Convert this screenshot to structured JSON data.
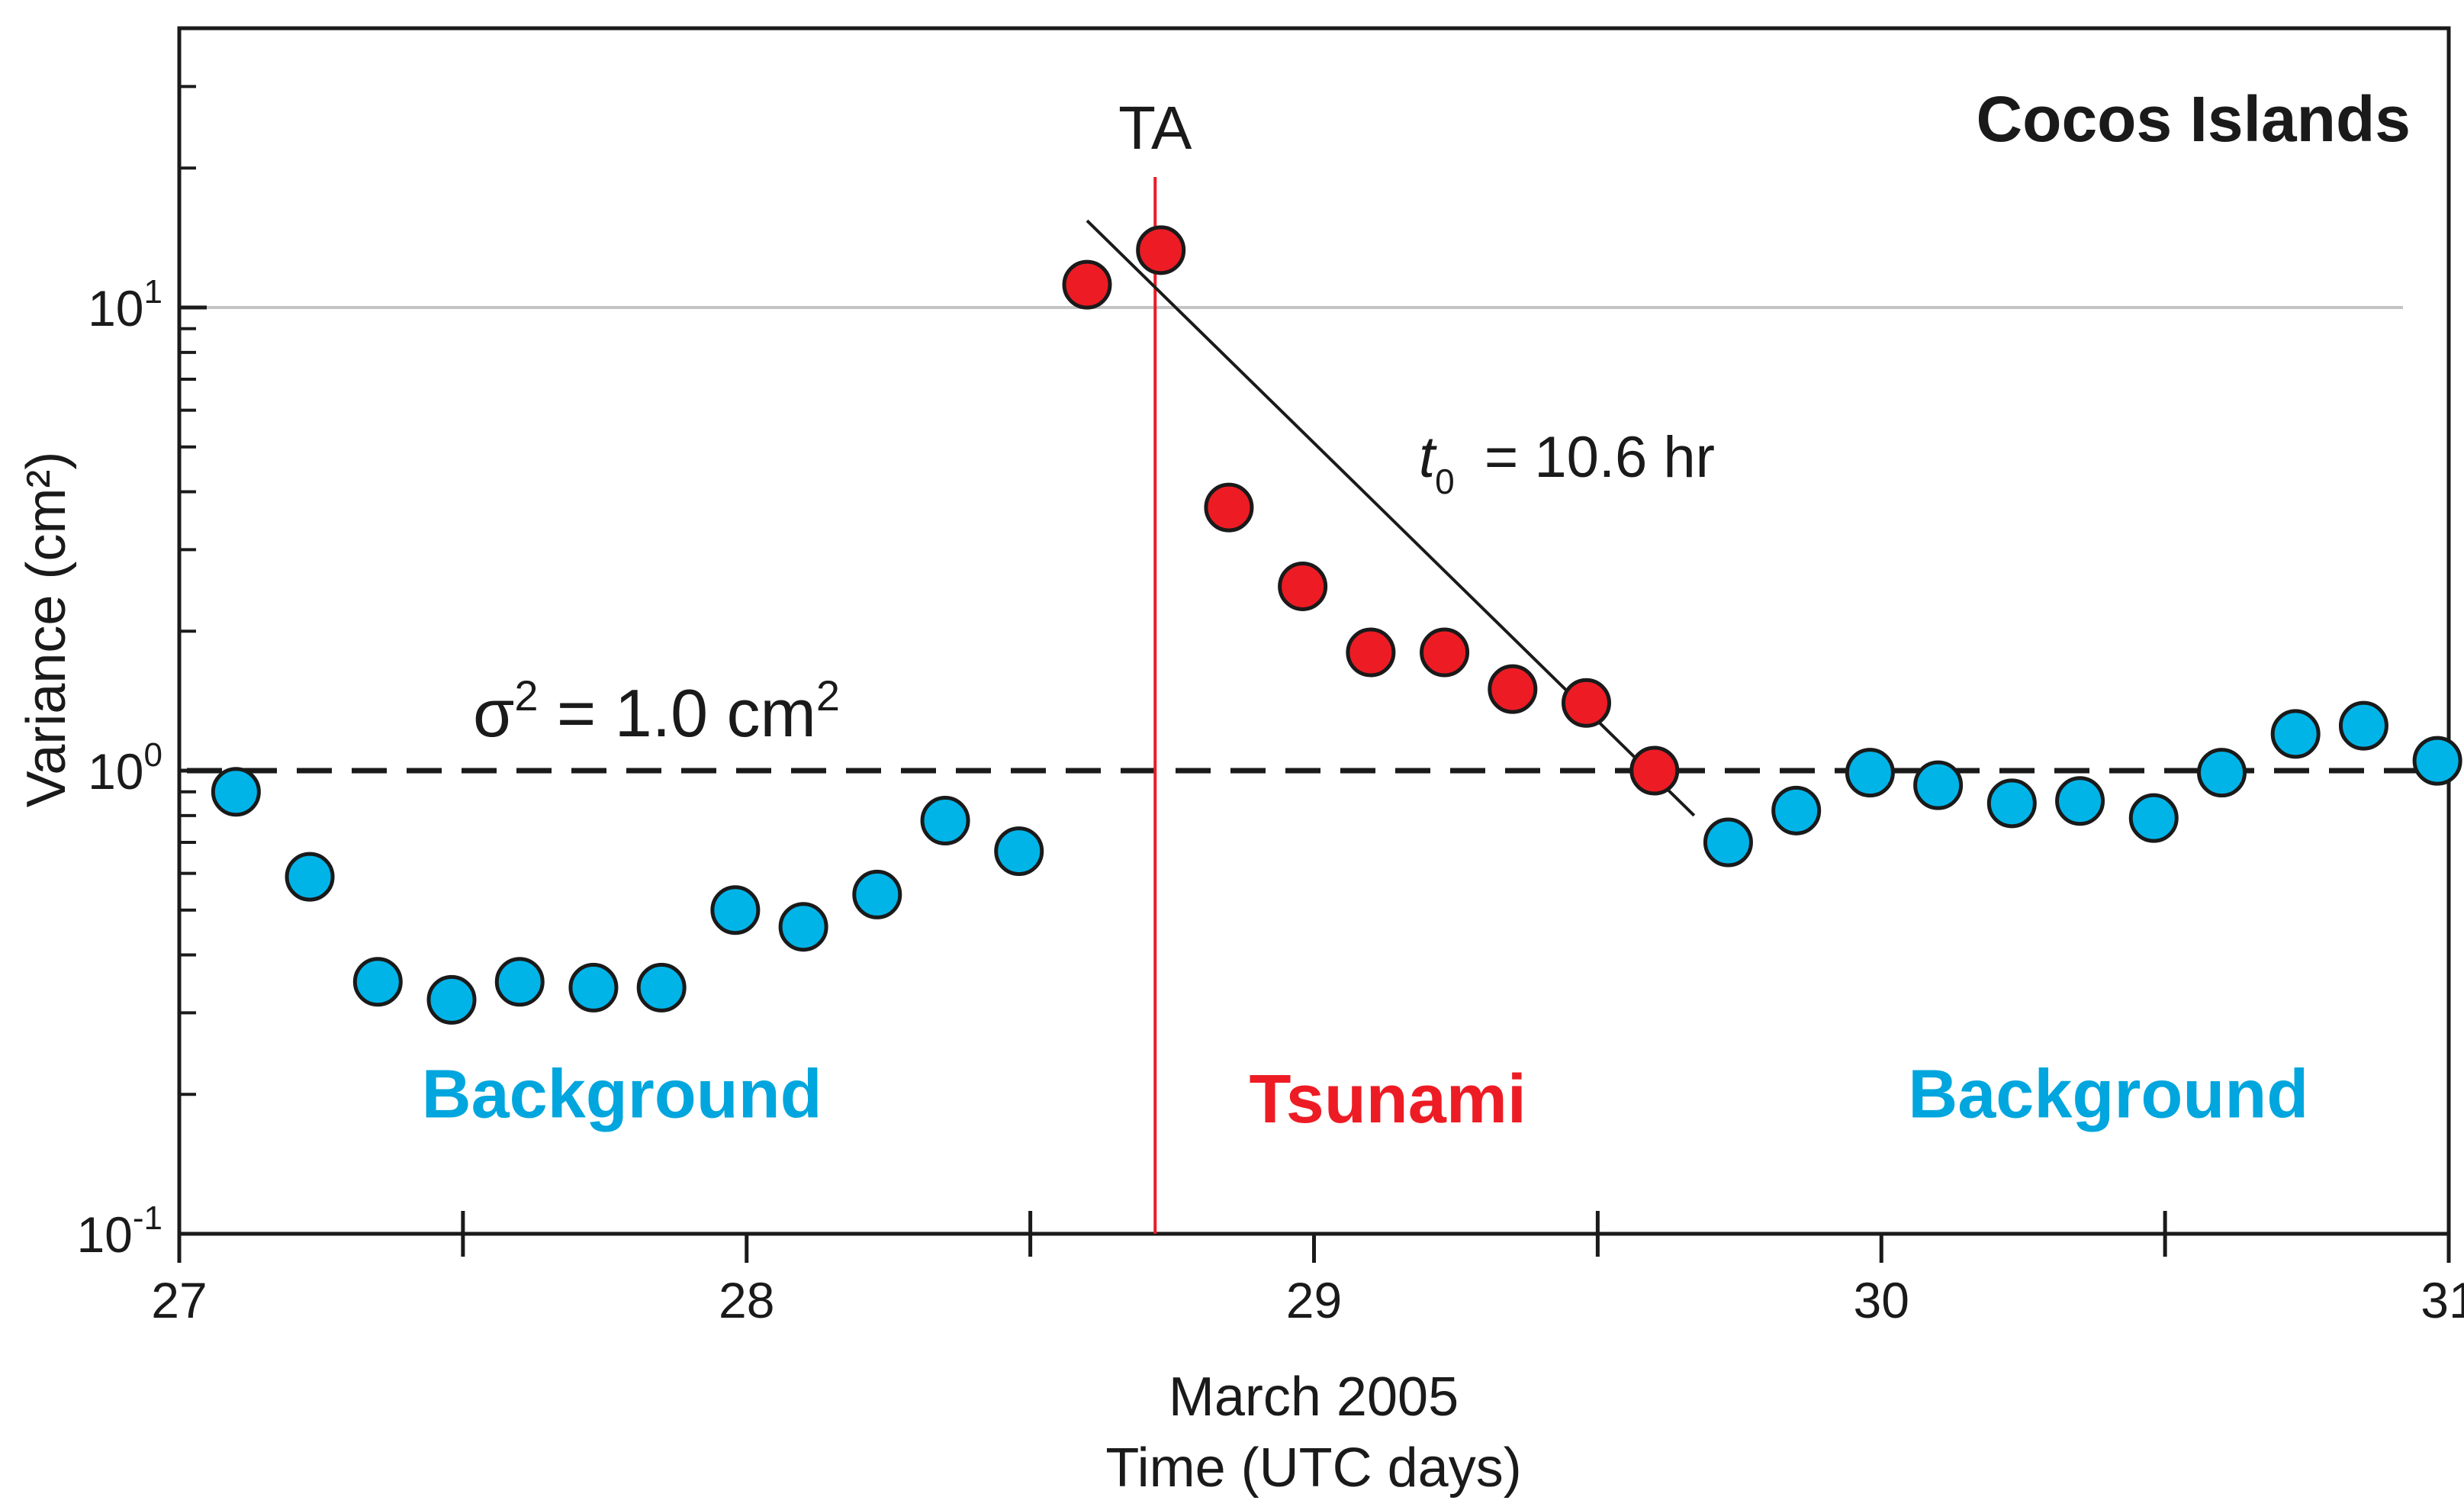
{
  "chart_data": {
    "type": "scatter",
    "title": "Cocos Islands",
    "xlabel_line1": "March 2005",
    "xlabel_line2": "Time (UTC days)",
    "ylabel": "Variance (cm²)",
    "y_scale": "log",
    "xlim": [
      27,
      31
    ],
    "ylim": [
      0.1,
      40
    ],
    "x_ticks": [
      27,
      28,
      29,
      30,
      31
    ],
    "x_tick_labels": [
      "27",
      "28",
      "29",
      "30",
      "31"
    ],
    "x_minor_ticks": [
      27.5,
      28.5,
      29.5,
      30.5
    ],
    "y_ticks": [
      0.1,
      1,
      10
    ],
    "y_tick_labels": [
      {
        "base": "10",
        "exp": "-1"
      },
      {
        "base": "10",
        "exp": "0"
      },
      {
        "base": "10",
        "exp": "1"
      }
    ],
    "series": [
      {
        "name": "Background",
        "color": "#00b4e8",
        "x": [
          27.1,
          27.23,
          27.35,
          27.48,
          27.6,
          27.73,
          27.85,
          27.98,
          28.1,
          28.23,
          28.35,
          28.48,
          29.73,
          29.85,
          29.98,
          30.1,
          30.23,
          30.35,
          30.48,
          30.6,
          30.73,
          30.85,
          30.98
        ],
        "values": [
          0.9,
          0.59,
          0.35,
          0.32,
          0.35,
          0.34,
          0.34,
          0.5,
          0.46,
          0.54,
          0.78,
          0.67,
          0.7,
          0.82,
          0.99,
          0.93,
          0.85,
          0.86,
          0.79,
          0.99,
          1.2,
          1.25,
          1.05
        ]
      },
      {
        "name": "Tsunami",
        "color": "#ed1c24",
        "x": [
          28.6,
          28.73,
          28.85,
          28.98,
          29.1,
          29.23,
          29.35,
          29.48,
          29.6
        ],
        "values": [
          11.2,
          13.3,
          3.7,
          2.5,
          1.8,
          1.8,
          1.5,
          1.4,
          1.0
        ]
      }
    ],
    "decay_fit": {
      "label_var": "t",
      "label_sub": "0",
      "label_rest": " = 10.6 hr",
      "x": [
        28.6,
        29.67
      ],
      "y": [
        15.4,
        0.8
      ]
    },
    "threshold": {
      "label": "σ² = 1.0 cm²",
      "sigma": "σ",
      "sup1": "2",
      "middle": " = 1.0 cm",
      "sup2": "2",
      "value": 1.0
    },
    "arrival": {
      "label": "TA",
      "x": 28.72,
      "color": "#ed1c24"
    },
    "reference_line_y": 10,
    "region_labels": [
      {
        "text": "Background",
        "x": 27.78,
        "y": 0.2,
        "color": "#00a6dd"
      },
      {
        "text": "Tsunami",
        "x": 29.13,
        "y": 0.195,
        "color": "#ed1c24"
      },
      {
        "text": "Background",
        "x": 30.4,
        "y": 0.2,
        "color": "#00a6dd"
      }
    ]
  }
}
